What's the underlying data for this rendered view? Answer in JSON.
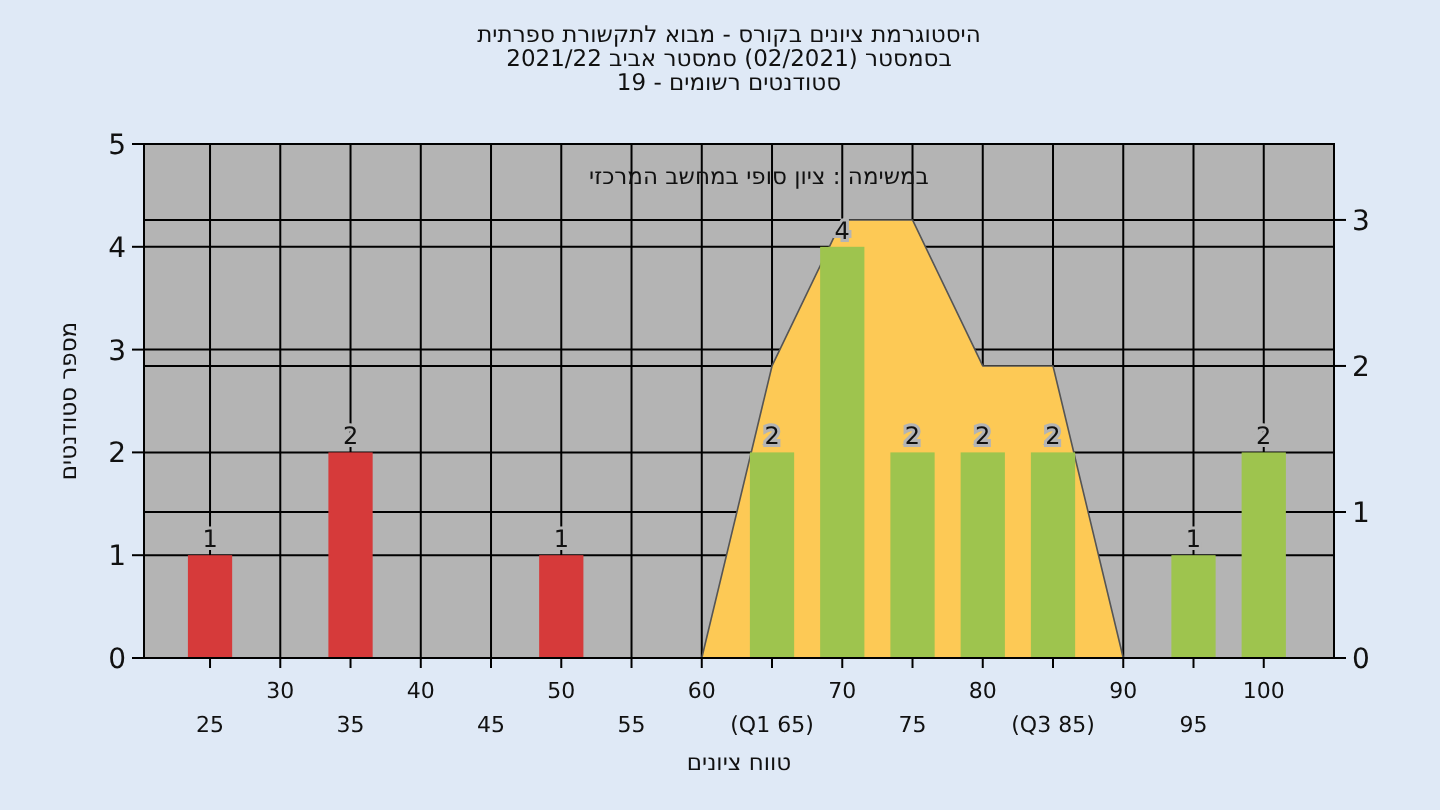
{
  "chart_data": {
    "type": "bar",
    "title": "היסטוגרמת ציונים בקורס - מבוא לתקשורת ספרתית\nבסמסטר (02/2021) סמסטר אביב 2021/22\nסטודנטים רשומים - 19",
    "xlabel": "טווח ציונים",
    "ylabel": "מספר סטודנטים",
    "annotations": [
      "במשימה : ציון סופי במחשב המרכזי"
    ],
    "categories": [
      "25",
      "30",
      "35",
      "40",
      "45",
      "50",
      "55",
      "60",
      "(Q1 65)",
      "70",
      "75",
      "80",
      "(Q3 85)",
      "90",
      "95",
      "100"
    ],
    "series": [
      {
        "type": "area",
        "axis": "y2",
        "color": "#fdc955",
        "values": [
          null,
          null,
          null,
          null,
          null,
          null,
          null,
          0,
          2,
          3,
          3,
          2,
          2,
          0,
          null,
          null
        ]
      },
      {
        "colors": [
          "#d63a3a",
          "#d63a3a",
          "#d63a3a",
          "#d63a3a",
          "#d63a3a",
          "#d63a3a",
          "#d63a3a",
          "#9ec44e",
          "#9ec44e",
          "#9ec44e",
          "#9ec44e",
          "#9ec44e",
          "#9ec44e",
          "#9ec44e",
          "#9ec44e",
          "#9ec44e"
        ],
        "values": [
          1,
          0,
          2,
          0,
          0,
          1,
          0,
          0,
          2,
          4,
          2,
          2,
          2,
          0,
          1,
          2
        ],
        "value_labels": [
          "1",
          null,
          "2",
          null,
          null,
          "1",
          null,
          null,
          "2",
          "4",
          "2",
          "2",
          "2",
          null,
          "1",
          "2"
        ]
      }
    ],
    "ylim": [
      0,
      5
    ],
    "yticks": [
      0,
      1,
      2,
      3,
      4,
      5
    ],
    "y2lim": [
      0,
      3.52
    ],
    "y2ticks": [
      0,
      1,
      2,
      3
    ],
    "grid": true
  }
}
